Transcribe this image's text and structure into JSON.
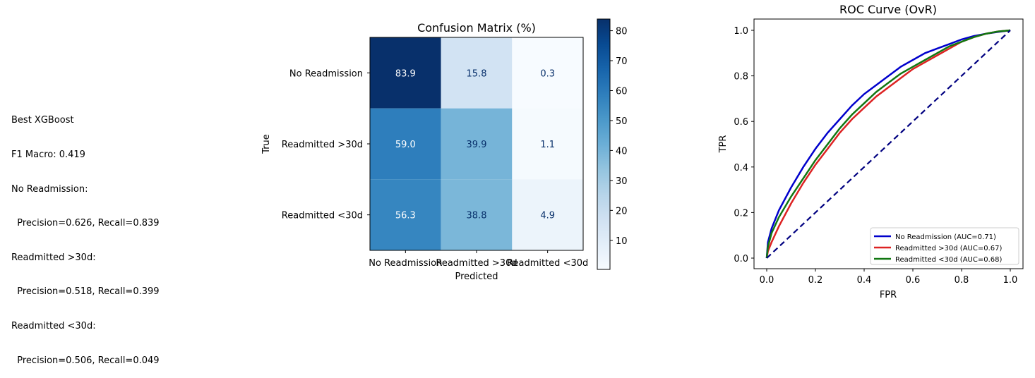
{
  "summary": {
    "lines": [
      "Best XGBoost",
      "F1 Macro: 0.419",
      "No Readmission:",
      "  Precision=0.626, Recall=0.839",
      "Readmitted >30d:",
      "  Precision=0.518, Recall=0.399",
      "Readmitted <30d:",
      "  Precision=0.506, Recall=0.049"
    ]
  },
  "chart_data": [
    {
      "type": "heatmap",
      "title": "Confusion Matrix (%)",
      "xlabel": "Predicted",
      "ylabel": "True",
      "x_categories": [
        "No Readmission",
        "Readmitted >30d",
        "Readmitted <30d"
      ],
      "y_categories": [
        "No Readmission",
        "Readmitted >30d",
        "Readmitted <30d"
      ],
      "values": [
        [
          83.9,
          15.8,
          0.3
        ],
        [
          59.0,
          39.9,
          1.1
        ],
        [
          56.3,
          38.8,
          4.9
        ]
      ],
      "colorbar": {
        "min": 0.3,
        "max": 83.9,
        "ticks": [
          10,
          20,
          30,
          40,
          50,
          60,
          70,
          80
        ]
      },
      "colormap": "Blues"
    },
    {
      "type": "line",
      "title": "ROC Curve (OvR)",
      "xlabel": "FPR",
      "ylabel": "TPR",
      "xlim": [
        0,
        1
      ],
      "ylim": [
        0,
        1
      ],
      "xticks": [
        "0.0",
        "0.2",
        "0.4",
        "0.6",
        "0.8",
        "1.0"
      ],
      "yticks": [
        "0.0",
        "0.2",
        "0.4",
        "0.6",
        "0.8",
        "1.0"
      ],
      "legend_position": "bottom-right",
      "series": [
        {
          "name": "No Readmission (AUC=0.71)",
          "color": "#0000cc",
          "x": [
            0,
            0.005,
            0.02,
            0.05,
            0.1,
            0.15,
            0.2,
            0.25,
            0.3,
            0.35,
            0.4,
            0.45,
            0.5,
            0.55,
            0.6,
            0.65,
            0.7,
            0.75,
            0.8,
            0.85,
            0.9,
            0.95,
            1.0
          ],
          "y": [
            0,
            0.07,
            0.13,
            0.21,
            0.31,
            0.4,
            0.48,
            0.55,
            0.61,
            0.67,
            0.72,
            0.76,
            0.8,
            0.84,
            0.87,
            0.9,
            0.92,
            0.94,
            0.96,
            0.975,
            0.985,
            0.993,
            1.0
          ]
        },
        {
          "name": "Readmitted >30d (AUC=0.67)",
          "color": "#dd2222",
          "x": [
            0,
            0.005,
            0.02,
            0.05,
            0.1,
            0.15,
            0.2,
            0.25,
            0.3,
            0.35,
            0.4,
            0.45,
            0.5,
            0.55,
            0.6,
            0.65,
            0.7,
            0.75,
            0.8,
            0.85,
            0.9,
            0.95,
            1.0
          ],
          "y": [
            0,
            0.03,
            0.07,
            0.14,
            0.24,
            0.33,
            0.41,
            0.48,
            0.55,
            0.61,
            0.66,
            0.71,
            0.75,
            0.79,
            0.83,
            0.86,
            0.89,
            0.92,
            0.95,
            0.97,
            0.985,
            0.995,
            1.0
          ]
        },
        {
          "name": "Readmitted <30d (AUC=0.68)",
          "color": "#117711",
          "x": [
            0,
            0.005,
            0.02,
            0.05,
            0.1,
            0.15,
            0.2,
            0.25,
            0.3,
            0.35,
            0.4,
            0.45,
            0.5,
            0.55,
            0.6,
            0.65,
            0.7,
            0.75,
            0.8,
            0.85,
            0.9,
            0.95,
            1.0
          ],
          "y": [
            0,
            0.05,
            0.11,
            0.18,
            0.27,
            0.35,
            0.43,
            0.5,
            0.57,
            0.63,
            0.68,
            0.73,
            0.77,
            0.81,
            0.84,
            0.87,
            0.9,
            0.93,
            0.95,
            0.97,
            0.985,
            0.995,
            1.0
          ]
        },
        {
          "name": "",
          "color": "#000080",
          "dashed": true,
          "x": [
            0,
            1
          ],
          "y": [
            0,
            1
          ]
        }
      ]
    }
  ]
}
